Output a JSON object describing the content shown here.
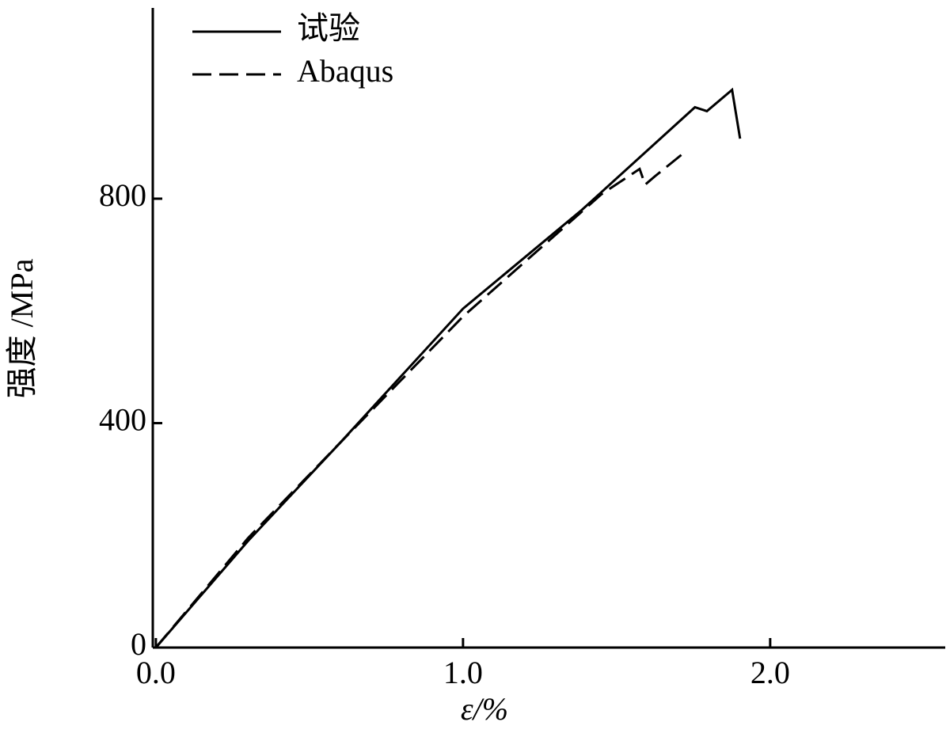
{
  "chart_data": {
    "type": "line",
    "x_label": "ε/%",
    "y_label": "强度 /MPa",
    "xlim": [
      -0.01,
      2.57
    ],
    "ylim": [
      0,
      1140
    ],
    "xticks": [
      {
        "value": 0,
        "label": "0.0"
      },
      {
        "value": 1,
        "label": "1.0"
      },
      {
        "value": 2,
        "label": "2.0"
      }
    ],
    "yticks": [
      0,
      400,
      800
    ],
    "legend": "upper left",
    "grid": false,
    "series": [
      {
        "name": "试验",
        "color": "#000000",
        "dash": "solid",
        "x": [
          0,
          0.3,
          0.6,
          1.0,
          1.387,
          1.755,
          1.794,
          1.876,
          1.902
        ],
        "values": [
          0,
          190,
          365,
          604,
          780,
          963,
          956,
          994,
          907
        ]
      },
      {
        "name": "Abaqus",
        "color": "#000000",
        "dash": "dashed",
        "x": [
          0,
          0.3,
          0.6,
          1.0,
          1.451,
          1.575,
          1.593,
          1.625,
          1.722
        ],
        "values": [
          0,
          195,
          365,
          590,
          808,
          853,
          825,
          840,
          883
        ]
      }
    ]
  }
}
